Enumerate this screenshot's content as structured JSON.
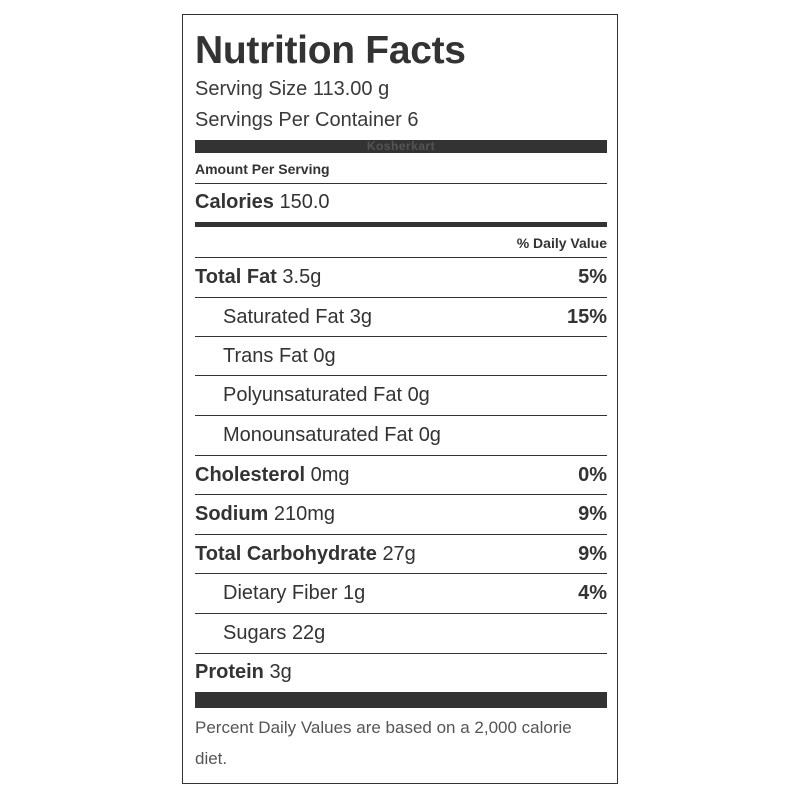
{
  "header": {
    "title": "Nutrition Facts",
    "serving_size": "Serving Size 113.00 g",
    "servings_per_container": "Servings Per Container 6",
    "watermark": "Kosherkart"
  },
  "amount_per_serving": "Amount Per Serving",
  "calories": {
    "label": "Calories",
    "value": "150.0"
  },
  "daily_value_header": "% Daily Value",
  "nutrients": [
    {
      "label": "Total Fat",
      "amount": "3.5g",
      "dv": "5%"
    },
    {
      "label": "Saturated Fat",
      "amount": "3g",
      "dv": "15%"
    },
    {
      "label": "Trans Fat",
      "amount": "0g",
      "dv": ""
    },
    {
      "label": "Polyunsaturated Fat",
      "amount": "0g",
      "dv": ""
    },
    {
      "label": "Monounsaturated Fat",
      "amount": "0g",
      "dv": ""
    },
    {
      "label": "Cholesterol",
      "amount": "0mg",
      "dv": "0%"
    },
    {
      "label": "Sodium",
      "amount": "210mg",
      "dv": "9%"
    },
    {
      "label": "Total Carbohydrate",
      "amount": "27g",
      "dv": "9%"
    },
    {
      "label": "Dietary Fiber",
      "amount": "1g",
      "dv": "4%"
    },
    {
      "label": "Sugars",
      "amount": "22g",
      "dv": ""
    },
    {
      "label": "Protein",
      "amount": "3g",
      "dv": ""
    }
  ],
  "footnote": "Percent Daily Values are based on a 2,000 calorie diet.",
  "colors": {
    "text": "#333333",
    "bars": "#333333",
    "footnote": "#555555"
  }
}
